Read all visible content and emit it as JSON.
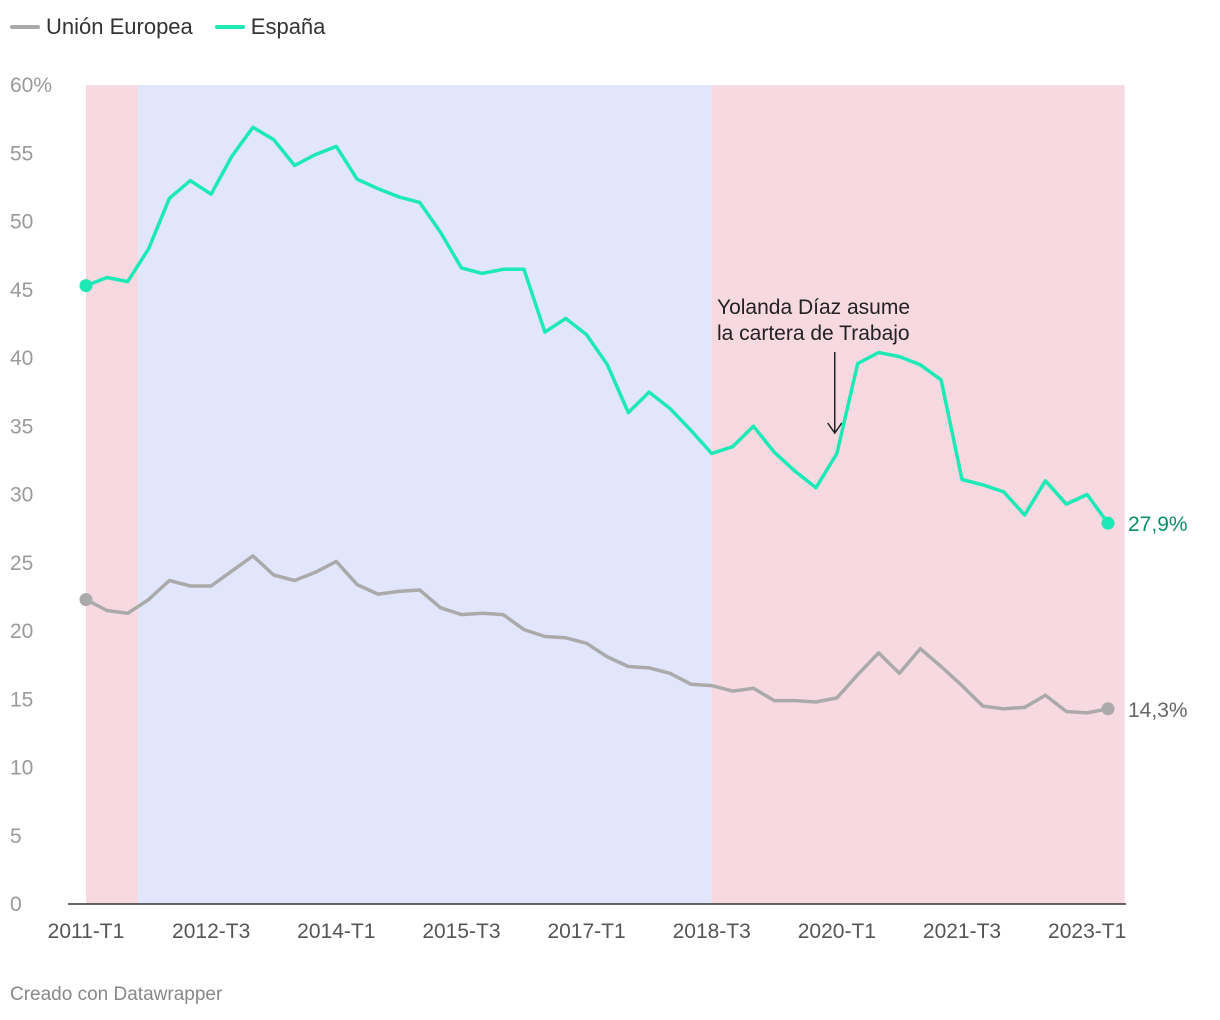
{
  "legend": {
    "items": [
      {
        "label": "Unión Europea",
        "color": "#aaaaaa"
      },
      {
        "label": "España",
        "color": "#1de9b6"
      }
    ]
  },
  "footer": "Creado con Datawrapper",
  "chart_data": {
    "type": "line",
    "title": "",
    "xlabel": "",
    "ylabel": "",
    "ylim": [
      0,
      60
    ],
    "y_ticks": [
      0,
      5,
      10,
      15,
      20,
      25,
      30,
      35,
      40,
      45,
      50,
      55,
      60
    ],
    "y_tick_labels": [
      "0",
      "5",
      "10",
      "15",
      "20",
      "25",
      "30",
      "35",
      "40",
      "45",
      "50",
      "55",
      "60%"
    ],
    "x_tick_labels": [
      "2011-T1",
      "2012-T3",
      "2014-T1",
      "2015-T3",
      "2017-T1",
      "2018-T3",
      "2020-T1",
      "2021-T3",
      "2023-T1"
    ],
    "x_tick_indices": [
      0,
      6,
      12,
      18,
      24,
      30,
      36,
      42,
      48
    ],
    "x": [
      "2011-T1",
      "2011-T2",
      "2011-T3",
      "2011-T4",
      "2012-T1",
      "2012-T2",
      "2012-T3",
      "2012-T4",
      "2013-T1",
      "2013-T2",
      "2013-T3",
      "2013-T4",
      "2014-T1",
      "2014-T2",
      "2014-T3",
      "2014-T4",
      "2015-T1",
      "2015-T2",
      "2015-T3",
      "2015-T4",
      "2016-T1",
      "2016-T2",
      "2016-T3",
      "2016-T4",
      "2017-T1",
      "2017-T2",
      "2017-T3",
      "2017-T4",
      "2018-T1",
      "2018-T2",
      "2018-T3",
      "2018-T4",
      "2019-T1",
      "2019-T2",
      "2019-T3",
      "2019-T4",
      "2020-T1",
      "2020-T2",
      "2020-T3",
      "2020-T4",
      "2021-T1",
      "2021-T2",
      "2021-T3",
      "2021-T4",
      "2022-T1",
      "2022-T2",
      "2022-T3",
      "2022-T4",
      "2023-T1",
      "2023-T2"
    ],
    "series": [
      {
        "name": "Unión Europea",
        "color": "#aaaaaa",
        "end_label": "14,3%",
        "values": [
          22.3,
          21.5,
          21.3,
          22.3,
          23.7,
          23.3,
          23.3,
          24.4,
          25.5,
          24.1,
          23.7,
          24.3,
          25.1,
          23.4,
          22.7,
          22.9,
          23.0,
          21.7,
          21.2,
          21.3,
          21.2,
          20.1,
          19.6,
          19.5,
          19.1,
          18.1,
          17.4,
          17.3,
          16.9,
          16.1,
          16.0,
          15.6,
          15.8,
          14.9,
          14.9,
          14.8,
          15.1,
          16.8,
          18.4,
          16.9,
          18.7,
          17.4,
          16.0,
          14.5,
          14.3,
          14.4,
          15.3,
          14.1,
          14.0,
          14.3
        ]
      },
      {
        "name": "España",
        "color": "#1de9b6",
        "label_color": "#0a8f6a",
        "end_label": "27,9%",
        "values": [
          45.3,
          45.9,
          45.6,
          48.0,
          51.7,
          53.0,
          52.0,
          54.8,
          56.9,
          56.0,
          54.1,
          54.9,
          55.5,
          53.1,
          52.4,
          51.8,
          51.4,
          49.2,
          46.6,
          46.2,
          46.5,
          46.5,
          41.9,
          42.9,
          41.7,
          39.5,
          36.0,
          37.5,
          36.3,
          34.7,
          33.0,
          33.5,
          35.0,
          33.1,
          31.7,
          30.5,
          33.0,
          39.6,
          40.4,
          40.1,
          39.5,
          38.4,
          31.1,
          30.7,
          30.2,
          28.5,
          31.0,
          29.3,
          30.0,
          27.9
        ]
      }
    ],
    "bands": [
      {
        "from": 0,
        "to": 2.5,
        "color": "#f7d9e1"
      },
      {
        "from": 2.5,
        "to": 30,
        "color": "#e1e6fc"
      },
      {
        "from": 30,
        "to": 49.8,
        "color": "#f7d9e1"
      }
    ],
    "annotation": {
      "lines": [
        "Yolanda Díaz asume",
        "la cartera de Trabajo"
      ],
      "x_index": 35.9,
      "y_value": 34.5
    }
  }
}
